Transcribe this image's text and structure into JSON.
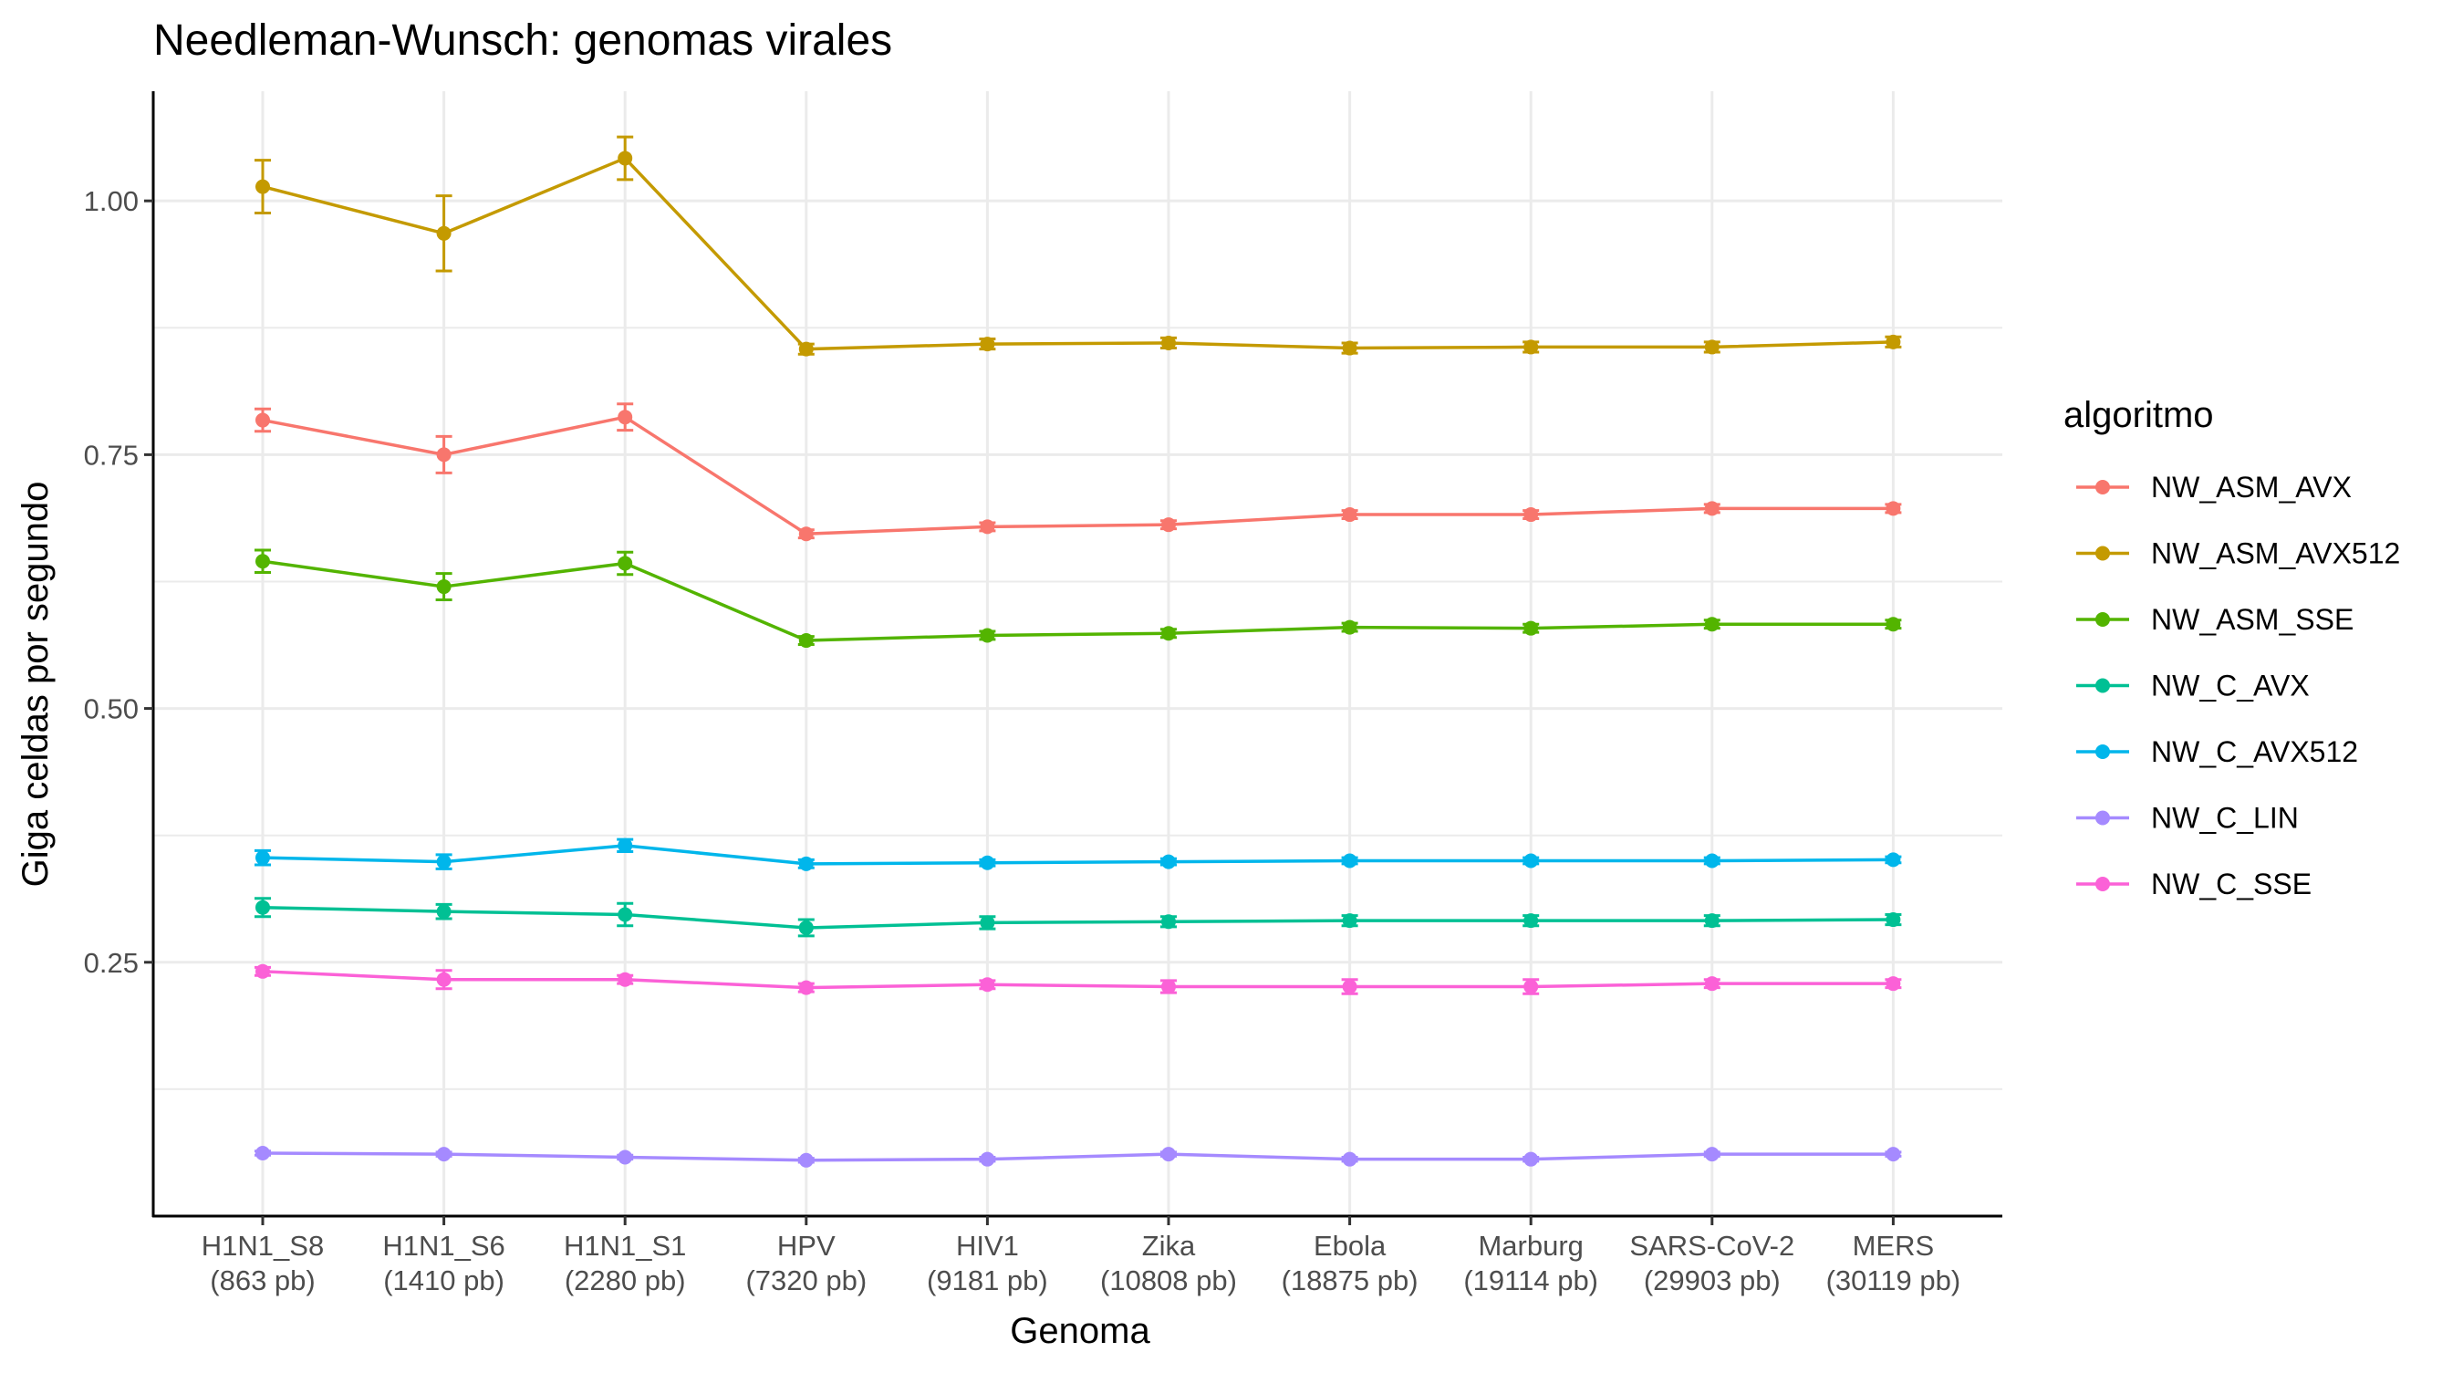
{
  "chart_data": {
    "type": "line",
    "title": "Needleman-Wunsch: genomas virales",
    "xlabel": "Genoma",
    "ylabel": "Giga celdas por segundo",
    "categories": [
      {
        "name": "H1N1_S8",
        "size": "(863 pb)"
      },
      {
        "name": "H1N1_S6",
        "size": "(1410 pb)"
      },
      {
        "name": "H1N1_S1",
        "size": "(2280 pb)"
      },
      {
        "name": "HPV",
        "size": "(7320 pb)"
      },
      {
        "name": "HIV1",
        "size": "(9181 pb)"
      },
      {
        "name": "Zika",
        "size": "(10808 pb)"
      },
      {
        "name": "Ebola",
        "size": "(18875 pb)"
      },
      {
        "name": "Marburg",
        "size": "(19114 pb)"
      },
      {
        "name": "SARS-CoV-2",
        "size": "(29903 pb)"
      },
      {
        "name": "MERS",
        "size": "(30119 pb)"
      }
    ],
    "ylim": [
      0.0,
      1.108
    ],
    "yticks": [
      {
        "value": 0.25,
        "label": "0.25"
      },
      {
        "value": 0.5,
        "label": "0.50"
      },
      {
        "value": 0.75,
        "label": "0.75"
      },
      {
        "value": 1.0,
        "label": "1.00"
      }
    ],
    "grid": true,
    "legend": {
      "title": "algoritmo",
      "position": "right"
    },
    "series": [
      {
        "name": "NW_ASM_AVX",
        "color": "#F8766D",
        "values": [
          0.784,
          0.75,
          0.787,
          0.672,
          0.679,
          0.681,
          0.691,
          0.691,
          0.697,
          0.697
        ],
        "errors": [
          0.011,
          0.018,
          0.013,
          0.004,
          0.004,
          0.004,
          0.004,
          0.004,
          0.004,
          0.004
        ]
      },
      {
        "name": "NW_ASM_AVX512",
        "color": "#C49A00",
        "values": [
          1.014,
          0.968,
          1.042,
          0.854,
          0.859,
          0.86,
          0.855,
          0.856,
          0.856,
          0.861
        ],
        "errors": [
          0.026,
          0.037,
          0.021,
          0.005,
          0.005,
          0.005,
          0.005,
          0.005,
          0.005,
          0.005
        ]
      },
      {
        "name": "NW_ASM_SSE",
        "color": "#53B400",
        "values": [
          0.645,
          0.62,
          0.643,
          0.567,
          0.572,
          0.574,
          0.58,
          0.579,
          0.583,
          0.583
        ],
        "errors": [
          0.011,
          0.013,
          0.011,
          0.004,
          0.004,
          0.004,
          0.004,
          0.004,
          0.004,
          0.004
        ]
      },
      {
        "name": "NW_C_AVX",
        "color": "#00C094",
        "values": [
          0.304,
          0.3,
          0.297,
          0.284,
          0.289,
          0.29,
          0.291,
          0.291,
          0.291,
          0.292
        ],
        "errors": [
          0.009,
          0.007,
          0.011,
          0.008,
          0.006,
          0.005,
          0.005,
          0.005,
          0.005,
          0.005
        ]
      },
      {
        "name": "NW_C_AVX512",
        "color": "#00B6EB",
        "values": [
          0.353,
          0.349,
          0.365,
          0.347,
          0.348,
          0.349,
          0.35,
          0.35,
          0.35,
          0.351
        ],
        "errors": [
          0.007,
          0.007,
          0.006,
          0.004,
          0.003,
          0.003,
          0.003,
          0.003,
          0.003,
          0.003
        ]
      },
      {
        "name": "NW_C_LIN",
        "color": "#A58AFF",
        "values": [
          0.062,
          0.061,
          0.058,
          0.055,
          0.056,
          0.061,
          0.056,
          0.056,
          0.061,
          0.061
        ],
        "errors": [
          0.002,
          0.002,
          0.002,
          0.002,
          0.002,
          0.002,
          0.002,
          0.002,
          0.002,
          0.002
        ]
      },
      {
        "name": "NW_C_SSE",
        "color": "#FB61D7",
        "values": [
          0.241,
          0.233,
          0.233,
          0.225,
          0.228,
          0.226,
          0.226,
          0.226,
          0.229,
          0.229
        ],
        "errors": [
          0.004,
          0.009,
          0.004,
          0.004,
          0.004,
          0.006,
          0.007,
          0.007,
          0.004,
          0.004
        ]
      }
    ]
  }
}
